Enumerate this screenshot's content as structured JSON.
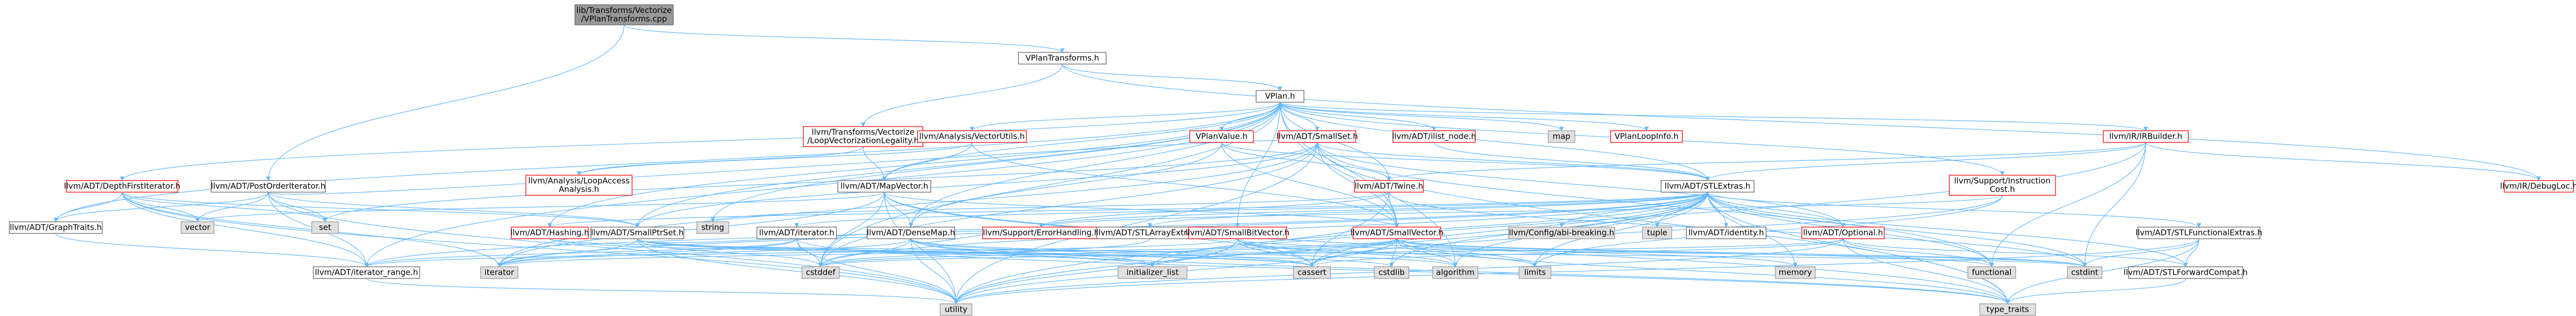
{
  "graph": {
    "colors": {
      "edge": "#63b8ff",
      "root_fill": "#999999",
      "header_border": "#ff0000",
      "header_fill": "#ffffff",
      "std_border": "#999999",
      "std_fill": "#e0e0e0",
      "text": "#000000"
    },
    "nodes": [
      {
        "id": "root",
        "label": [
          "lib/Transforms/Vectorize",
          "/VPlanTransforms.cpp"
        ],
        "kind": "root"
      },
      {
        "id": "vplantransforms",
        "label": [
          "VPlanTransforms.h"
        ],
        "kind": "plain"
      },
      {
        "id": "vplan",
        "label": [
          "VPlan.h"
        ],
        "kind": "plain"
      },
      {
        "id": "postorder",
        "label": [
          "llvm/ADT/PostOrderIterator.h"
        ],
        "kind": "plain"
      },
      {
        "id": "depthfirst",
        "label": [
          "llvm/ADT/DepthFirstIterator.h"
        ],
        "kind": "header"
      },
      {
        "id": "loopvec",
        "label": [
          "llvm/Transforms/Vectorize",
          "/LoopVectorizationLegality.h"
        ],
        "kind": "header"
      },
      {
        "id": "vectorutils",
        "label": [
          "llvm/Analysis/VectorUtils.h"
        ],
        "kind": "header"
      },
      {
        "id": "vplanvalue",
        "label": [
          "VPlanValue.h"
        ],
        "kind": "header"
      },
      {
        "id": "smallset",
        "label": [
          "llvm/ADT/SmallSet.h"
        ],
        "kind": "header"
      },
      {
        "id": "ilistnode",
        "label": [
          "llvm/ADT/ilist_node.h"
        ],
        "kind": "header"
      },
      {
        "id": "map",
        "label": [
          "map"
        ],
        "kind": "std"
      },
      {
        "id": "vplanlooinfo",
        "label": [
          "VPlanLoopInfo.h"
        ],
        "kind": "header"
      },
      {
        "id": "vpirbuilder",
        "label": [
          "llvm/IR/IRBuilder.h"
        ],
        "kind": "header"
      },
      {
        "id": "debugloc",
        "label": [
          "llvm/IR/DebugLoc.h"
        ],
        "kind": "header"
      },
      {
        "id": "graphtraits",
        "label": [
          "llvm/ADT/GraphTraits.h"
        ],
        "kind": "plain"
      },
      {
        "id": "vector",
        "label": [
          "vector"
        ],
        "kind": "std"
      },
      {
        "id": "set",
        "label": [
          "set"
        ],
        "kind": "std"
      },
      {
        "id": "loopaccess",
        "label": [
          "llvm/Analysis/LoopAccess",
          "Analysis.h"
        ],
        "kind": "header"
      },
      {
        "id": "mapvector",
        "label": [
          "llvm/ADT/MapVector.h"
        ],
        "kind": "plain"
      },
      {
        "id": "twine",
        "label": [
          "llvm/ADT/Twine.h"
        ],
        "kind": "header"
      },
      {
        "id": "stlextras",
        "label": [
          "llvm/ADT/STLExtras.h"
        ],
        "kind": "plain"
      },
      {
        "id": "instrcost",
        "label": [
          "llvm/Support/Instruction",
          "Cost.h"
        ],
        "kind": "header"
      },
      {
        "id": "hashing",
        "label": [
          "llvm/ADT/Hashing.h"
        ],
        "kind": "header"
      },
      {
        "id": "smallptrset",
        "label": [
          "llvm/ADT/SmallPtrSet.h"
        ],
        "kind": "plain"
      },
      {
        "id": "string",
        "label": [
          "string"
        ],
        "kind": "std"
      },
      {
        "id": "iterator_h",
        "label": [
          "llvm/ADT/iterator.h"
        ],
        "kind": "plain"
      },
      {
        "id": "densemap",
        "label": [
          "llvm/ADT/DenseMap.h"
        ],
        "kind": "plain"
      },
      {
        "id": "errorhandling",
        "label": [
          "llvm/Support/ErrorHandling.h"
        ],
        "kind": "header"
      },
      {
        "id": "stlarray",
        "label": [
          "llvm/ADT/STLArrayExtras.h"
        ],
        "kind": "plain"
      },
      {
        "id": "smallbitvector",
        "label": [
          "llvm/ADT/SmallBitVector.h"
        ],
        "kind": "header"
      },
      {
        "id": "smallvector",
        "label": [
          "llvm/ADT/SmallVector.h"
        ],
        "kind": "header"
      },
      {
        "id": "configbreak",
        "label": [
          "llvm/Config/abi-breaking.h"
        ],
        "kind": "std"
      },
      {
        "id": "tuple",
        "label": [
          "tuple"
        ],
        "kind": "std"
      },
      {
        "id": "identity",
        "label": [
          "llvm/ADT/identity.h"
        ],
        "kind": "plain"
      },
      {
        "id": "optional",
        "label": [
          "llvm/ADT/Optional.h"
        ],
        "kind": "header"
      },
      {
        "id": "stlfunctional",
        "label": [
          "llvm/ADT/STLFunctionalExtras.h"
        ],
        "kind": "plain"
      },
      {
        "id": "iterator_std",
        "label": [
          "iterator"
        ],
        "kind": "std"
      },
      {
        "id": "iterator_range",
        "label": [
          "llvm/ADT/iterator_range.h"
        ],
        "kind": "plain"
      },
      {
        "id": "cstddef",
        "label": [
          "cstddef"
        ],
        "kind": "std"
      },
      {
        "id": "initializer_list",
        "label": [
          "initializer_list"
        ],
        "kind": "std"
      },
      {
        "id": "cassert",
        "label": [
          "cassert"
        ],
        "kind": "std"
      },
      {
        "id": "cstdlib",
        "label": [
          "cstdlib"
        ],
        "kind": "std"
      },
      {
        "id": "algorithm",
        "label": [
          "algorithm"
        ],
        "kind": "std"
      },
      {
        "id": "limits",
        "label": [
          "limits"
        ],
        "kind": "std"
      },
      {
        "id": "memory",
        "label": [
          "memory"
        ],
        "kind": "std"
      },
      {
        "id": "functional",
        "label": [
          "functional"
        ],
        "kind": "std"
      },
      {
        "id": "cstdint",
        "label": [
          "cstdint"
        ],
        "kind": "std"
      },
      {
        "id": "stlforward",
        "label": [
          "llvm/ADT/STLForwardCompat.h"
        ],
        "kind": "plain"
      },
      {
        "id": "utility",
        "label": [
          "utility"
        ],
        "kind": "std"
      },
      {
        "id": "type_traits",
        "label": [
          "type_traits"
        ],
        "kind": "std"
      }
    ],
    "edges": [
      [
        "root",
        "vplantransforms"
      ],
      [
        "root",
        "postorder"
      ],
      [
        "vplantransforms",
        "vplan"
      ],
      [
        "vplantransforms",
        "loopvec"
      ],
      [
        "vplantransforms",
        "debugloc"
      ],
      [
        "vplan",
        "depthfirst"
      ],
      [
        "vplan",
        "graphtraits"
      ],
      [
        "vplan",
        "vectorutils"
      ],
      [
        "vplan",
        "vplanvalue"
      ],
      [
        "vplan",
        "smallset"
      ],
      [
        "vplan",
        "ilistnode"
      ],
      [
        "vplan",
        "map"
      ],
      [
        "vplan",
        "vplanlooinfo"
      ],
      [
        "vplan",
        "vpirbuilder"
      ],
      [
        "vplan",
        "instrcost"
      ],
      [
        "vplan",
        "twine"
      ],
      [
        "vplan",
        "mapvector"
      ],
      [
        "vplan",
        "smallptrset"
      ],
      [
        "vplan",
        "smallbitvector"
      ],
      [
        "vplan",
        "smallvector"
      ],
      [
        "vplan",
        "densemap"
      ],
      [
        "vplan",
        "stlextras"
      ],
      [
        "vplan",
        "iterator_range"
      ],
      [
        "vplan",
        "cstddef"
      ],
      [
        "vplan",
        "string"
      ],
      [
        "vplan",
        "hashing"
      ],
      [
        "vplan",
        "algorithm"
      ],
      [
        "postorder",
        "graphtraits"
      ],
      [
        "postorder",
        "smallptrset"
      ],
      [
        "postorder",
        "smallset"
      ],
      [
        "postorder",
        "iterator_range"
      ],
      [
        "postorder",
        "set"
      ],
      [
        "postorder",
        "utility"
      ],
      [
        "postorder",
        "vector"
      ],
      [
        "depthfirst",
        "graphtraits"
      ],
      [
        "depthfirst",
        "smallptrset"
      ],
      [
        "depthfirst",
        "iterator_range"
      ],
      [
        "depthfirst",
        "iterator_std"
      ],
      [
        "depthfirst",
        "vector"
      ],
      [
        "depthfirst",
        "utility"
      ],
      [
        "depthfirst",
        "set"
      ],
      [
        "loopvec",
        "loopaccess"
      ],
      [
        "loopvec",
        "mapvector"
      ],
      [
        "vectorutils",
        "mapvector"
      ],
      [
        "vectorutils",
        "smallvector"
      ],
      [
        "vectorutils",
        "loopaccess"
      ],
      [
        "vplanvalue",
        "densemap"
      ],
      [
        "vplanvalue",
        "stlextras"
      ],
      [
        "vplanvalue",
        "smallvector"
      ],
      [
        "vplanvalue",
        "twine"
      ],
      [
        "smallset",
        "smallptrset"
      ],
      [
        "smallset",
        "smallvector"
      ],
      [
        "smallset",
        "optional"
      ],
      [
        "smallset",
        "iterator_std"
      ],
      [
        "smallset",
        "set"
      ],
      [
        "smallset",
        "utility"
      ],
      [
        "smallset",
        "cstddef"
      ],
      [
        "smallset",
        "functional"
      ],
      [
        "smallset",
        "type_traits"
      ],
      [
        "smallset",
        "stlextras"
      ],
      [
        "ilistnode",
        "stlextras"
      ],
      [
        "vpirbuilder",
        "debugloc"
      ],
      [
        "vpirbuilder",
        "stlextras"
      ],
      [
        "vpirbuilder",
        "twine"
      ],
      [
        "vpirbuilder",
        "cstdint"
      ],
      [
        "vpirbuilder",
        "functional"
      ],
      [
        "vpirbuilder",
        "utility"
      ],
      [
        "instrcost",
        "errorhandling"
      ],
      [
        "instrcost",
        "cassert"
      ],
      [
        "instrcost",
        "limits"
      ],
      [
        "twine",
        "smallvector"
      ],
      [
        "twine",
        "errorhandling"
      ],
      [
        "twine",
        "cassert"
      ],
      [
        "twine",
        "cstdint"
      ],
      [
        "twine",
        "string"
      ],
      [
        "mapvector",
        "densemap"
      ],
      [
        "mapvector",
        "smallvector"
      ],
      [
        "mapvector",
        "cassert"
      ],
      [
        "mapvector",
        "cstddef"
      ],
      [
        "mapvector",
        "iterator_std"
      ],
      [
        "mapvector",
        "type_traits"
      ],
      [
        "mapvector",
        "utility"
      ],
      [
        "mapvector",
        "vector"
      ],
      [
        "stlextras",
        "hashing"
      ],
      [
        "stlextras",
        "stlarray"
      ],
      [
        "stlextras",
        "stlforward"
      ],
      [
        "stlextras",
        "stlfunctional"
      ],
      [
        "stlextras",
        "identity"
      ],
      [
        "stlextras",
        "iterator_h"
      ],
      [
        "stlextras",
        "iterator_range"
      ],
      [
        "stlextras",
        "configbreak"
      ],
      [
        "stlextras",
        "errorhandling"
      ],
      [
        "stlextras",
        "algorithm"
      ],
      [
        "stlextras",
        "cassert"
      ],
      [
        "stlextras",
        "cstddef"
      ],
      [
        "stlextras",
        "cstdint"
      ],
      [
        "stlextras",
        "cstdlib"
      ],
      [
        "stlextras",
        "functional"
      ],
      [
        "stlextras",
        "initializer_list"
      ],
      [
        "stlextras",
        "iterator_std"
      ],
      [
        "stlextras",
        "limits"
      ],
      [
        "stlextras",
        "memory"
      ],
      [
        "stlextras",
        "tuple"
      ],
      [
        "stlextras",
        "type_traits"
      ],
      [
        "stlextras",
        "utility"
      ],
      [
        "stlextras",
        "optional"
      ],
      [
        "smallptrset",
        "errorhandling"
      ],
      [
        "smallptrset",
        "cassert"
      ],
      [
        "smallptrset",
        "cstddef"
      ],
      [
        "smallptrset",
        "cstdlib"
      ],
      [
        "smallptrset",
        "initializer_list"
      ],
      [
        "smallptrset",
        "iterator_std"
      ],
      [
        "smallptrset",
        "utility"
      ],
      [
        "smallptrset",
        "cstring"
      ],
      [
        "iterator_h",
        "iterator_range"
      ],
      [
        "iterator_h",
        "cstddef"
      ],
      [
        "iterator_h",
        "iterator_std"
      ],
      [
        "iterator_h",
        "type_traits"
      ],
      [
        "iterator_h",
        "utility"
      ],
      [
        "iterator_range",
        "utility"
      ],
      [
        "densemap",
        "cstddef"
      ],
      [
        "densemap",
        "initializer_list"
      ],
      [
        "densemap",
        "cassert"
      ],
      [
        "densemap",
        "algorithm"
      ],
      [
        "densemap",
        "iterator_std"
      ],
      [
        "densemap",
        "new"
      ],
      [
        "densemap",
        "type_traits"
      ],
      [
        "densemap",
        "utility"
      ],
      [
        "densemap",
        "errorhandling"
      ],
      [
        "stlarray",
        "cstddef"
      ],
      [
        "smallbitvector",
        "smallvector"
      ],
      [
        "smallbitvector",
        "iterator_range"
      ],
      [
        "smallbitvector",
        "algorithm"
      ],
      [
        "smallbitvector",
        "cassert"
      ],
      [
        "smallbitvector",
        "climits"
      ],
      [
        "smallbitvector",
        "cstdint"
      ],
      [
        "smallbitvector",
        "limits"
      ],
      [
        "smallbitvector",
        "utility"
      ],
      [
        "smallvector",
        "algorithm"
      ],
      [
        "smallvector",
        "cassert"
      ],
      [
        "smallvector",
        "cstddef"
      ],
      [
        "smallvector",
        "cstdlib"
      ],
      [
        "smallvector",
        "initializer_list"
      ],
      [
        "smallvector",
        "iterator_std"
      ],
      [
        "smallvector",
        "limits"
      ],
      [
        "smallvector",
        "memory"
      ],
      [
        "smallvector",
        "type_traits"
      ],
      [
        "smallvector",
        "utility"
      ],
      [
        "smallvector",
        "functional"
      ],
      [
        "smallvector",
        "cstdint"
      ],
      [
        "optional",
        "stlforward"
      ],
      [
        "optional",
        "cassert"
      ],
      [
        "optional",
        "cstddef"
      ],
      [
        "optional",
        "new"
      ],
      [
        "optional",
        "utility"
      ],
      [
        "optional",
        "type_traits"
      ],
      [
        "optional",
        "functional"
      ],
      [
        "stlfunctional",
        "stlforward"
      ],
      [
        "stlfunctional",
        "cstdint"
      ],
      [
        "stlfunctional",
        "type_traits"
      ],
      [
        "stlfunctional",
        "utility"
      ],
      [
        "stlforward",
        "type_traits"
      ],
      [
        "graphtraits",
        "iterator_range"
      ],
      [
        "hashing",
        "cassert"
      ],
      [
        "hashing",
        "cstdint"
      ]
    ]
  }
}
